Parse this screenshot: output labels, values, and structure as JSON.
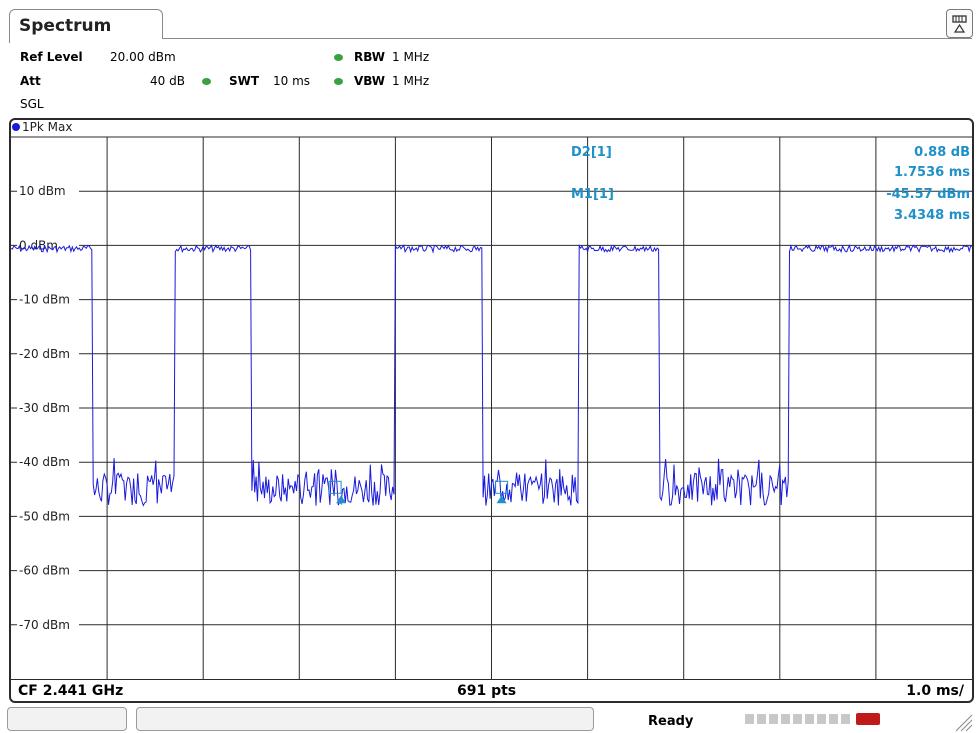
{
  "tab": {
    "title": "Spectrum"
  },
  "header": {
    "ref_level_label": "Ref Level",
    "ref_level_value": "20.00 dBm",
    "att_label": "Att",
    "att_value": "40 dB",
    "swt_label": "SWT",
    "swt_value": "10 ms",
    "rbw_label": "RBW",
    "rbw_value": "1 MHz",
    "vbw_label": "VBW",
    "vbw_value": "1 MHz",
    "mode": "SGL"
  },
  "trace": {
    "label": "1Pk Max",
    "color": "#1a1add"
  },
  "markers": {
    "d2_label": "D2[1]",
    "d2_level": "0.88 dB",
    "d2_time": "1.7536 ms",
    "m1_label": "M1[1]",
    "m1_level": "-45.57 dBm",
    "m1_time": "3.4348 ms",
    "color": "#1f90c8"
  },
  "footer": {
    "center": "CF 2.441 GHz",
    "points": "691 pts",
    "scale": "1.0 ms/"
  },
  "status": {
    "ready": "Ready"
  },
  "chart_data": {
    "type": "line",
    "y_unit": "dBm",
    "ylim": [
      -80,
      20
    ],
    "xlim": [
      0,
      10
    ],
    "x_unit": "ms",
    "y_tick_labels": [
      "10 dBm",
      "0 dBm",
      "-10 dBm",
      "-20 dBm",
      "-30 dBm",
      "-40 dBm",
      "-50 dBm",
      "-60 dBm",
      "-70 dBm"
    ],
    "grid": true,
    "series": [
      {
        "name": "1Pk Max",
        "bursts_on_ms": [
          [
            0.0,
            0.85
          ],
          [
            1.7,
            2.5
          ],
          [
            4.0,
            4.9
          ],
          [
            5.9,
            6.75
          ],
          [
            8.1,
            10.0
          ]
        ],
        "on_level": 0,
        "off_level": -45
      }
    ],
    "marker_positions_ms": {
      "M1": 3.4348,
      "D2_ref": 5.1884
    }
  }
}
